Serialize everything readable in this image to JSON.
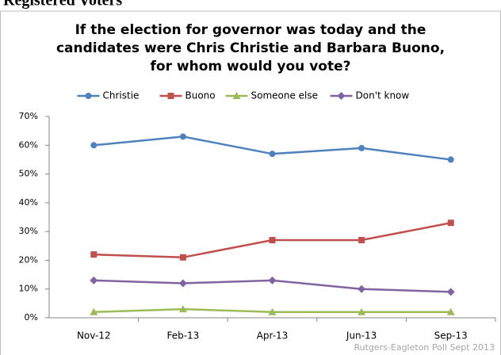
{
  "page_heading": "Registered Voters",
  "chart_data": {
    "type": "line",
    "title": [
      "If the election for governor was today and the",
      "candidates were Chris Christie and Barbara Buono,",
      "for whom would you vote?"
    ],
    "categories": [
      "Nov-12",
      "Feb-13",
      "Apr-13",
      "Jun-13",
      "Sep-13"
    ],
    "series": [
      {
        "name": "Christie",
        "color": "#4f81bd",
        "marker": "circle",
        "values": [
          60,
          63,
          57,
          59,
          55
        ]
      },
      {
        "name": "Buono",
        "color": "#c0504d",
        "marker": "square",
        "values": [
          22,
          21,
          27,
          27,
          33
        ]
      },
      {
        "name": "Someone else",
        "color": "#9bbb59",
        "marker": "triangle",
        "values": [
          2,
          3,
          2,
          2,
          2
        ]
      },
      {
        "name": "Don't know",
        "color": "#8064a2",
        "marker": "diamond",
        "values": [
          13,
          12,
          13,
          10,
          9
        ]
      }
    ],
    "ylim": [
      0,
      70
    ],
    "yticks": [
      {
        "value": 0,
        "label": "0%"
      },
      {
        "value": 10,
        "label": "10%"
      },
      {
        "value": 20,
        "label": "20%"
      },
      {
        "value": 30,
        "label": "30%"
      },
      {
        "value": 40,
        "label": "40%"
      },
      {
        "value": 50,
        "label": "50%"
      },
      {
        "value": 60,
        "label": "60%"
      },
      {
        "value": 70,
        "label": "70%"
      }
    ],
    "grid": false,
    "legend": "top",
    "source": "Rutgers-Eagleton Poll Sept 2013"
  }
}
